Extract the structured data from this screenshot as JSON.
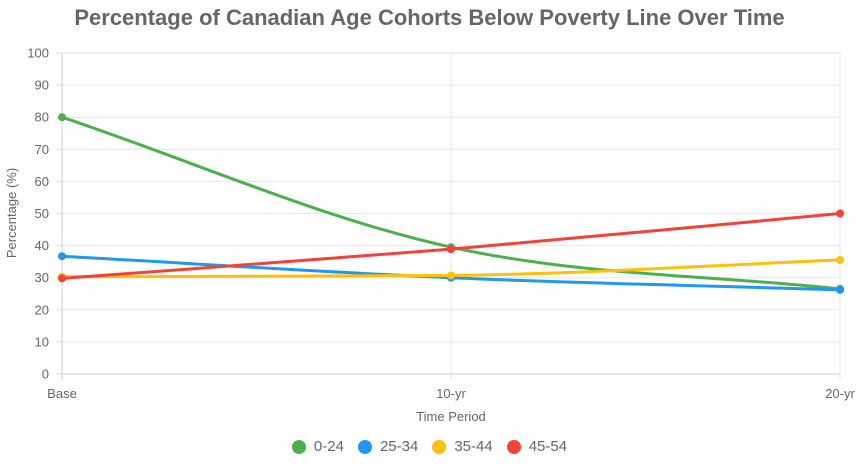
{
  "chart_data": {
    "type": "line",
    "title": "Percentage of Canadian Age Cohorts Below Poverty Line Over Time",
    "xlabel": "Time Period",
    "ylabel": "Percentage (%)",
    "categories": [
      "Base",
      "10-yr",
      "20-yr"
    ],
    "ylim": [
      0,
      100
    ],
    "yticks": [
      0,
      10,
      20,
      30,
      40,
      50,
      60,
      70,
      80,
      90,
      100
    ],
    "grid": true,
    "legend_position": "bottom",
    "series": [
      {
        "name": "0-24",
        "color": "#4caf50",
        "values": [
          80,
          39.5,
          26.5
        ]
      },
      {
        "name": "25-34",
        "color": "#2196f3",
        "values": [
          36.7,
          30,
          26.2
        ]
      },
      {
        "name": "35-44",
        "color": "#ffc107",
        "values": [
          30.3,
          30.7,
          35.5
        ]
      },
      {
        "name": "45-54",
        "color": "#f44336",
        "values": [
          29.8,
          38.9,
          50
        ]
      }
    ]
  }
}
